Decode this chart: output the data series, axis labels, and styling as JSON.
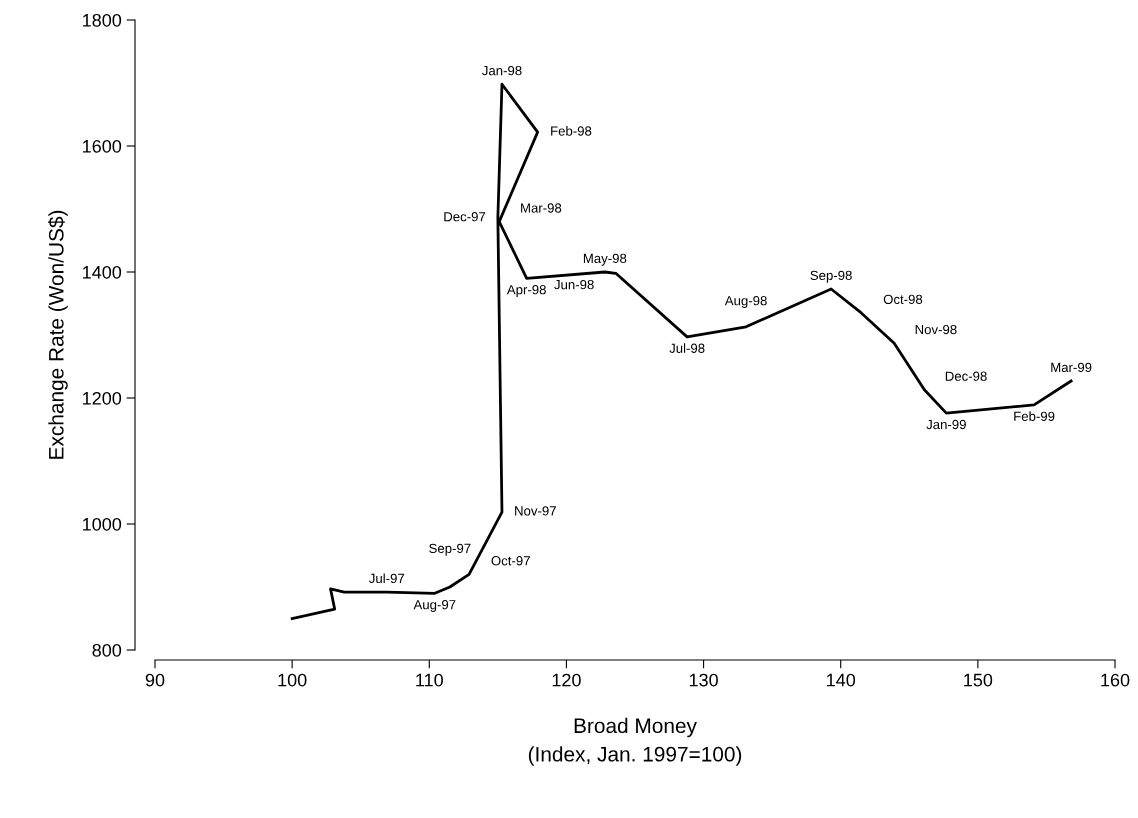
{
  "chart_data": {
    "type": "line",
    "xlabel": "Broad Money\n(Index, Jan. 1997=100)",
    "ylabel": "Exchange Rate (Won/US$)",
    "x": [
      100,
      103.1,
      102.8,
      103.8,
      106.9,
      110.4,
      111.5,
      112.9,
      115.3,
      115.0,
      115.3,
      117.9,
      115.1,
      117.1,
      122.8,
      123.6,
      128.8,
      133.1,
      139.3,
      141.5,
      143.9,
      146.1,
      147.7,
      154.1,
      156.8
    ],
    "series": [
      {
        "color": "#000000",
        "values": [
          850,
          865,
          897,
          892,
          892,
          890,
          900,
          920,
          1019,
          1486,
          1698,
          1622,
          1480,
          1390,
          1400,
          1398,
          1297,
          1313,
          1373,
          1335,
          1287,
          1213,
          1176,
          1189,
          1227
        ]
      }
    ],
    "annotations": [
      {
        "text": "Jul-97",
        "x": 106.9,
        "y": 892
      },
      {
        "text": "Aug-97",
        "x": 110.4,
        "y": 890
      },
      {
        "text": "Sep-97",
        "x": 111.5,
        "y": 900
      },
      {
        "text": "Oct-97",
        "x": 112.9,
        "y": 920
      },
      {
        "text": "Nov-97",
        "x": 115.3,
        "y": 1019
      },
      {
        "text": "Dec-97",
        "x": 115.0,
        "y": 1486
      },
      {
        "text": "Jan-98",
        "x": 115.3,
        "y": 1698
      },
      {
        "text": "Feb-98",
        "x": 117.9,
        "y": 1622
      },
      {
        "text": "Mar-98",
        "x": 115.1,
        "y": 1480
      },
      {
        "text": "Apr-98",
        "x": 117.1,
        "y": 1390
      },
      {
        "text": "May-98",
        "x": 122.8,
        "y": 1400
      },
      {
        "text": "Jun-98",
        "x": 123.6,
        "y": 1398
      },
      {
        "text": "Jul-98",
        "x": 128.8,
        "y": 1297
      },
      {
        "text": "Aug-98",
        "x": 133.1,
        "y": 1313
      },
      {
        "text": "Sep-98",
        "x": 139.3,
        "y": 1373
      },
      {
        "text": "Oct-98",
        "x": 141.5,
        "y": 1335
      },
      {
        "text": "Nov-98",
        "x": 143.9,
        "y": 1287
      },
      {
        "text": "Dec-98",
        "x": 146.1,
        "y": 1213
      },
      {
        "text": "Jan-99",
        "x": 147.7,
        "y": 1176
      },
      {
        "text": "Feb-99",
        "x": 154.1,
        "y": 1189
      },
      {
        "text": "Mar-99",
        "x": 156.8,
        "y": 1227
      }
    ],
    "xlim": [
      90,
      160
    ],
    "xticks": [
      90,
      100,
      110,
      120,
      130,
      140,
      150,
      160
    ],
    "ylim": [
      800,
      1800
    ],
    "yticks": [
      800,
      1000,
      1200,
      1400,
      1600,
      1800
    ],
    "grid": false,
    "marker": "none",
    "line_style": "solid"
  }
}
